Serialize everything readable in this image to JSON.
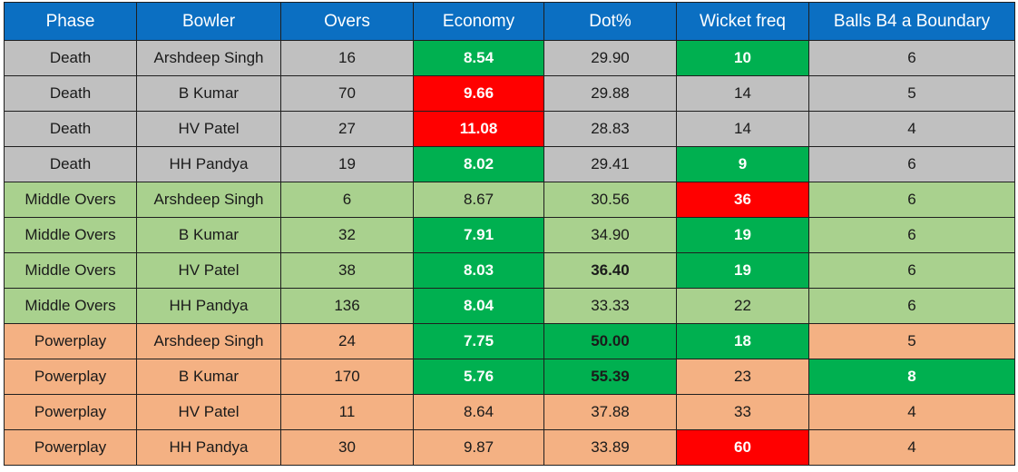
{
  "columns": [
    "Phase",
    "Bowler",
    "Overs",
    "Economy",
    "Dot%",
    "Wicket freq",
    "Balls B4 a Boundary"
  ],
  "rows": [
    {
      "phase": "Death",
      "bowler": "Arshdeep Singh",
      "overs": "16",
      "economy": "8.54",
      "dot": "29.90",
      "wicket_freq": "10",
      "balls_b4_boundary": "6"
    },
    {
      "phase": "Death",
      "bowler": "B Kumar",
      "overs": "70",
      "economy": "9.66",
      "dot": "29.88",
      "wicket_freq": "14",
      "balls_b4_boundary": "5"
    },
    {
      "phase": "Death",
      "bowler": "HV Patel",
      "overs": "27",
      "economy": "11.08",
      "dot": "28.83",
      "wicket_freq": "14",
      "balls_b4_boundary": "4"
    },
    {
      "phase": "Death",
      "bowler": "HH Pandya",
      "overs": "19",
      "economy": "8.02",
      "dot": "29.41",
      "wicket_freq": "9",
      "balls_b4_boundary": "6"
    },
    {
      "phase": "Middle Overs",
      "bowler": "Arshdeep Singh",
      "overs": "6",
      "economy": "8.67",
      "dot": "30.56",
      "wicket_freq": "36",
      "balls_b4_boundary": "6"
    },
    {
      "phase": "Middle Overs",
      "bowler": "B Kumar",
      "overs": "32",
      "economy": "7.91",
      "dot": "34.90",
      "wicket_freq": "19",
      "balls_b4_boundary": "6"
    },
    {
      "phase": "Middle Overs",
      "bowler": "HV Patel",
      "overs": "38",
      "economy": "8.03",
      "dot": "36.40",
      "wicket_freq": "19",
      "balls_b4_boundary": "6"
    },
    {
      "phase": "Middle Overs",
      "bowler": "HH Pandya",
      "overs": "136",
      "economy": "8.04",
      "dot": "33.33",
      "wicket_freq": "22",
      "balls_b4_boundary": "6"
    },
    {
      "phase": "Powerplay",
      "bowler": "Arshdeep Singh",
      "overs": "24",
      "economy": "7.75",
      "dot": "50.00",
      "wicket_freq": "18",
      "balls_b4_boundary": "5"
    },
    {
      "phase": "Powerplay",
      "bowler": "B Kumar",
      "overs": "170",
      "economy": "5.76",
      "dot": "55.39",
      "wicket_freq": "23",
      "balls_b4_boundary": "8"
    },
    {
      "phase": "Powerplay",
      "bowler": "HV Patel",
      "overs": "11",
      "economy": "8.64",
      "dot": "37.88",
      "wicket_freq": "33",
      "balls_b4_boundary": "4"
    },
    {
      "phase": "Powerplay",
      "bowler": "HH Pandya",
      "overs": "30",
      "economy": "9.87",
      "dot": "33.89",
      "wicket_freq": "60",
      "balls_b4_boundary": "4"
    }
  ],
  "colors": {
    "header": "#0b6fc2",
    "death_row": "#c0c0c0",
    "middle_row": "#a9d18e",
    "powerplay_row": "#f4b183",
    "highlight_good": "#00b050",
    "highlight_bad": "#ff0000"
  }
}
